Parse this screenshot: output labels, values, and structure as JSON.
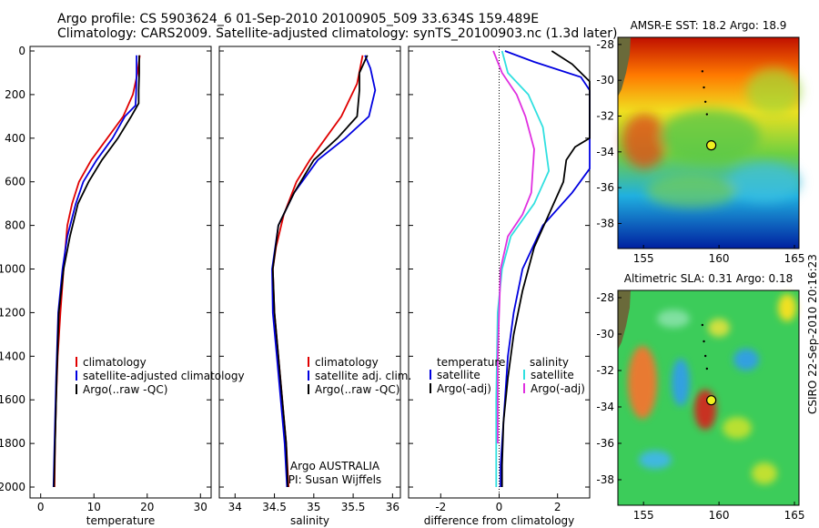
{
  "header": {
    "line1": "Argo profile: CS 5903624_6 01-Sep-2010 20100905_509 33.634S 159.489E",
    "line2": "Climatology: CARS2009. Satellite-adjusted climatology: synTS_20100903.nc (1.3d later)"
  },
  "stamp": "CSIRO 22-Sep-2010 20:16:23",
  "colors": {
    "climatology": "#e00000",
    "satellite": "#0000e0",
    "argo": "#000000",
    "sat_salt": "#30e0e0",
    "argo_salt": "#e030e0"
  },
  "chart_data": [
    {
      "type": "line",
      "xlabel": "temperature",
      "ylabel": "",
      "xlim": [
        -2,
        32
      ],
      "ylim": [
        2050,
        0
      ],
      "xticks": [
        0,
        10,
        20,
        30
      ],
      "yticks": [
        0,
        200,
        400,
        600,
        800,
        1000,
        1200,
        1400,
        1600,
        1800,
        2000
      ],
      "legend": {
        "placement": "lower-right",
        "entries": [
          "climatology",
          "satellite-adjusted climatology",
          "Argo(..raw -QC)"
        ]
      },
      "series": [
        {
          "name": "climatology",
          "color": "#e00000",
          "x": [
            18.6,
            18.2,
            17.3,
            15.5,
            12.5,
            9.5,
            7.2,
            5.9,
            5.0,
            4.3,
            3.7,
            3.2,
            2.9,
            2.7,
            2.6
          ],
          "y": [
            20,
            100,
            200,
            300,
            400,
            500,
            600,
            700,
            800,
            1000,
            1200,
            1400,
            1600,
            1800,
            2000
          ]
        },
        {
          "name": "satellite-adjusted climatology",
          "color": "#0000e0",
          "x": [
            18.0,
            18.0,
            17.9,
            17.8,
            15.8,
            13.5,
            10.5,
            8.0,
            6.6,
            5.0,
            4.1,
            3.3,
            2.9,
            2.6,
            2.4
          ],
          "y": [
            20,
            100,
            200,
            250,
            300,
            400,
            500,
            600,
            700,
            850,
            1000,
            1200,
            1500,
            1800,
            2000
          ]
        },
        {
          "name": "Argo(..raw -QC)",
          "color": "#000000",
          "x": [
            18.5,
            18.5,
            18.4,
            18.4,
            17.0,
            14.5,
            11.5,
            9.0,
            7.0,
            5.5,
            4.3,
            3.4,
            3.0,
            2.7,
            2.5
          ],
          "y": [
            20,
            100,
            180,
            240,
            300,
            400,
            500,
            600,
            700,
            850,
            1000,
            1200,
            1500,
            1800,
            2000
          ]
        }
      ]
    },
    {
      "type": "line",
      "xlabel": "salinity",
      "xlim": [
        33.8,
        36.1
      ],
      "ylim": [
        2050,
        0
      ],
      "xticks": [
        34,
        34.5,
        35,
        35.5,
        36
      ],
      "legend": {
        "placement": "lower-right",
        "entries": [
          "climatology",
          "satellite adj. clim.",
          "Argo(..raw -QC)"
        ]
      },
      "annotation": [
        "Argo AUSTRALIA",
        "PI: Susan Wijffels"
      ],
      "series": [
        {
          "name": "climatology",
          "color": "#e00000",
          "x": [
            35.62,
            35.55,
            35.35,
            35.15,
            34.95,
            34.78,
            34.62,
            34.52,
            34.48,
            34.5,
            34.55,
            34.6,
            34.65,
            34.68
          ],
          "y": [
            20,
            150,
            300,
            400,
            500,
            600,
            750,
            900,
            1000,
            1200,
            1400,
            1600,
            1800,
            2000
          ]
        },
        {
          "name": "satellite adj. clim.",
          "color": "#0000e0",
          "x": [
            35.65,
            35.72,
            35.78,
            35.7,
            35.4,
            35.05,
            34.75,
            34.55,
            34.47,
            34.48,
            34.53,
            34.58,
            34.63,
            34.66
          ],
          "y": [
            20,
            80,
            180,
            300,
            400,
            500,
            650,
            800,
            1000,
            1200,
            1400,
            1600,
            1800,
            2000
          ]
        },
        {
          "name": "Argo(..raw -QC)",
          "color": "#000000",
          "x": [
            35.68,
            35.58,
            35.58,
            35.55,
            35.3,
            35.0,
            34.75,
            34.55,
            34.48,
            34.5,
            34.55,
            34.6,
            34.65,
            34.67
          ],
          "y": [
            20,
            100,
            180,
            300,
            400,
            500,
            650,
            800,
            1000,
            1200,
            1400,
            1600,
            1800,
            2000
          ]
        }
      ]
    },
    {
      "type": "line",
      "xlabel": "difference from climatology",
      "xlim": [
        -3.1,
        3.1
      ],
      "ylim": [
        2050,
        0
      ],
      "xticks": [
        -2,
        0,
        2
      ],
      "zero_line": "dotted",
      "legend": {
        "placement": "lower-right",
        "columns": [
          {
            "heading": "temperature",
            "entries": [
              "satellite",
              "Argo(-adj)"
            ]
          },
          {
            "heading": "salinity",
            "entries": [
              "satellite",
              "Argo(-adj)"
            ]
          }
        ]
      },
      "series": [
        {
          "name": "temperature satellite",
          "color": "#0000e0",
          "x": [
            0.2,
            1.2,
            2.8,
            3.1,
            3.1,
            2.5,
            1.5,
            0.8,
            0.5,
            0.3,
            0.2,
            0.1,
            0.05,
            0.05
          ],
          "y": [
            0,
            50,
            120,
            180,
            540,
            650,
            800,
            1000,
            1200,
            1400,
            1600,
            1800,
            1900,
            2000
          ]
        },
        {
          "name": "temperature Argo(-adj)",
          "color": "#000000",
          "x": [
            1.8,
            2.5,
            3.1,
            3.1,
            2.6,
            2.3,
            2.2,
            1.7,
            1.2,
            0.8,
            0.5,
            0.3,
            0.15,
            0.1,
            0.1
          ],
          "y": [
            0,
            60,
            140,
            400,
            440,
            500,
            600,
            750,
            900,
            1100,
            1300,
            1500,
            1700,
            1900,
            2000
          ]
        },
        {
          "name": "salinity satellite",
          "color": "#30e0e0",
          "x": [
            0.1,
            0.3,
            1.0,
            1.5,
            1.7,
            1.2,
            0.4,
            0.1,
            -0.05,
            -0.1,
            -0.1
          ],
          "y": [
            0,
            100,
            200,
            350,
            550,
            700,
            850,
            1000,
            1200,
            1600,
            2000
          ]
        },
        {
          "name": "salinity Argo(-adj)",
          "color": "#e030e0",
          "x": [
            -0.2,
            0.1,
            0.6,
            0.9,
            1.2,
            1.1,
            0.8,
            0.3,
            0.05,
            -0.05,
            -0.05
          ],
          "y": [
            0,
            100,
            200,
            300,
            450,
            650,
            750,
            850,
            1000,
            1400,
            1800
          ]
        }
      ]
    },
    {
      "type": "heatmap",
      "title": "AMSR-E SST: 18.2 Argo: 18.9",
      "xlim": [
        153.3,
        165.3
      ],
      "ylim": [
        -39.4,
        -27.6
      ],
      "xticks": [
        155,
        160,
        165
      ],
      "yticks": [
        -28,
        -30,
        -32,
        -34,
        -36,
        -38
      ],
      "marker": {
        "lon": 159.489,
        "lat": -33.634
      }
    },
    {
      "type": "heatmap",
      "title": "Altimetric SLA: 0.31 Argo: 0.18",
      "xlim": [
        153.3,
        165.3
      ],
      "ylim": [
        -39.4,
        -27.6
      ],
      "xticks": [
        155,
        160,
        165
      ],
      "yticks": [
        -28,
        -30,
        -32,
        -34,
        -36,
        -38
      ],
      "marker": {
        "lon": 159.489,
        "lat": -33.634
      }
    }
  ]
}
